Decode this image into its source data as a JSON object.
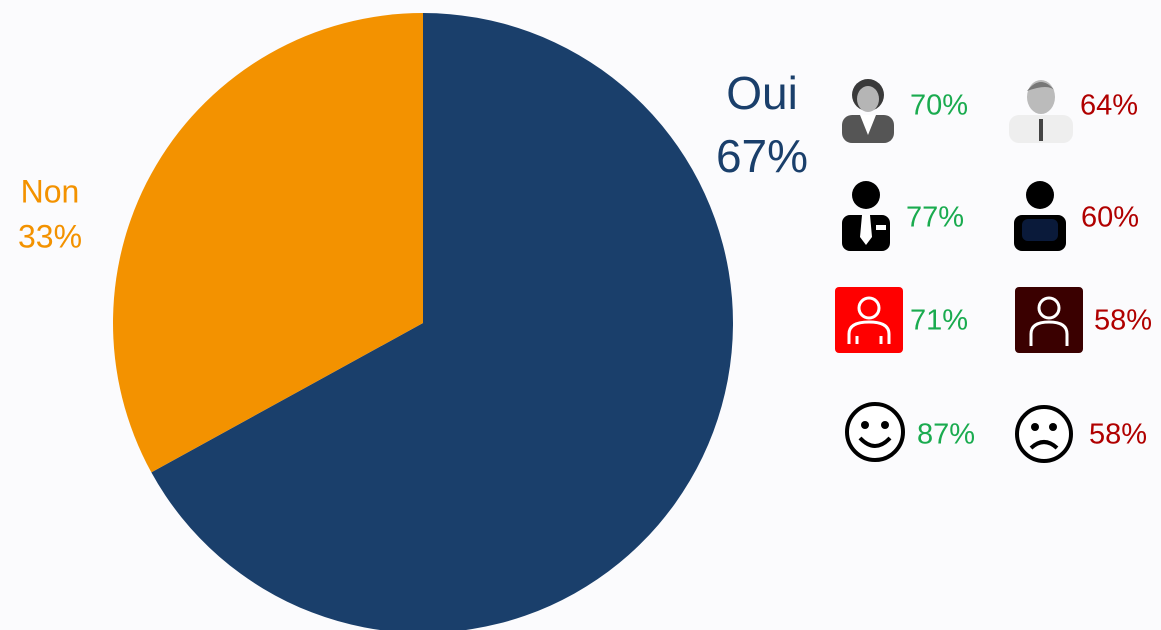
{
  "chart_data": {
    "type": "pie",
    "categories": [
      "Oui",
      "Non"
    ],
    "values": [
      67,
      33
    ],
    "value_labels": [
      "67%",
      "33%"
    ],
    "colors": [
      "#1a3f6b",
      "#f39200"
    ],
    "comparisons": {
      "values": [
        70,
        64,
        77,
        60,
        71,
        58,
        87,
        58
      ],
      "value_labels": [
        "70%",
        "64%",
        "77%",
        "60%",
        "71%",
        "58%",
        "87%",
        "58%"
      ],
      "colors": [
        "#1aab4f",
        "#b00000",
        "#1aab4f",
        "#b00000",
        "#1aab4f",
        "#b00000",
        "#1aab4f",
        "#b00000"
      ]
    }
  }
}
